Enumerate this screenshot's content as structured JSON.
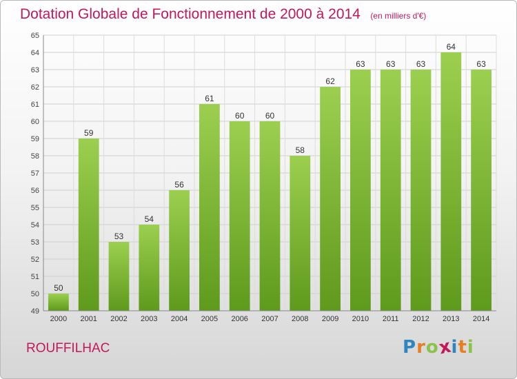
{
  "chart_data": {
    "type": "bar",
    "title": "Dotation Globale de Fonctionnement de 2000 à 2014",
    "subtitle": "(en milliers d'€)",
    "categories": [
      "2000",
      "2001",
      "2002",
      "2003",
      "2004",
      "2005",
      "2006",
      "2007",
      "2008",
      "2009",
      "2010",
      "2011",
      "2012",
      "2013",
      "2014"
    ],
    "values": [
      50,
      59,
      53,
      54,
      56,
      61,
      60,
      60,
      58,
      62,
      63,
      63,
      63,
      64,
      63
    ],
    "ylim": [
      49,
      65
    ],
    "yticks": [
      49,
      50,
      51,
      52,
      53,
      54,
      55,
      56,
      57,
      58,
      59,
      60,
      61,
      62,
      63,
      64,
      65
    ],
    "grid": true,
    "bar_color": "#7fb833"
  },
  "commune": "ROUFFILHAC",
  "logo": {
    "text": "Proxiti",
    "letters": [
      {
        "ch": "P",
        "color": "#2e86c1"
      },
      {
        "ch": "r",
        "color": "#e67e22"
      },
      {
        "ch": "o",
        "color": "#8bc34a"
      },
      {
        "ch": "x",
        "color": "#c2185b"
      },
      {
        "ch": "i",
        "color": "#2e86c1"
      },
      {
        "ch": "t",
        "color": "#e67e22"
      },
      {
        "ch": "i",
        "color": "#8bc34a"
      }
    ]
  },
  "colors": {
    "title": "#c2185b",
    "bar": "#7fb833",
    "bar_dark": "#5e9a1c",
    "grid": "#cfcfcf"
  }
}
